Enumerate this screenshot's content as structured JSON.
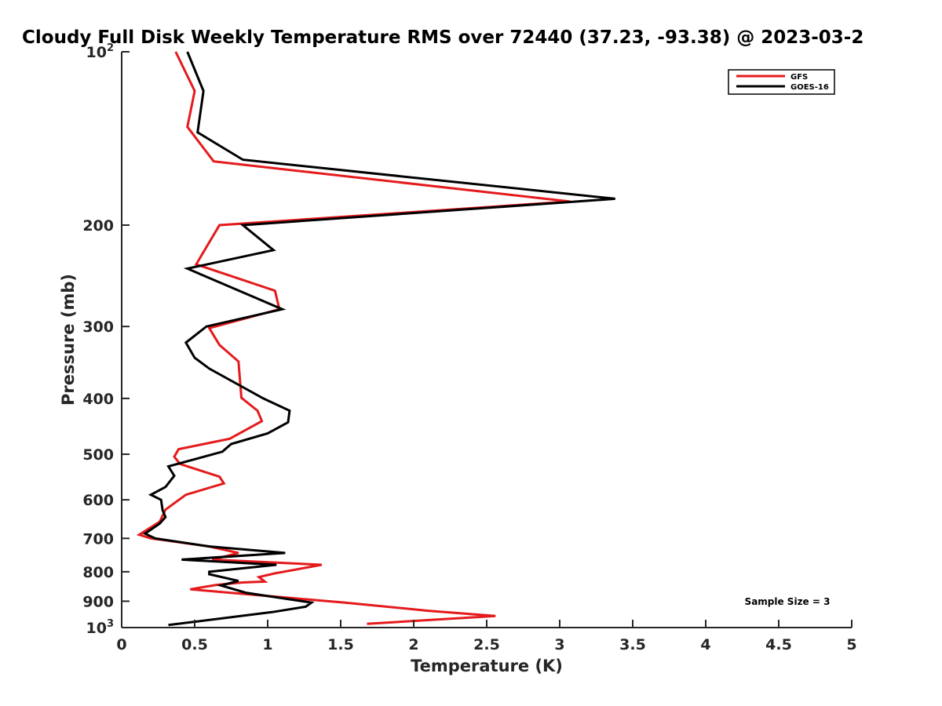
{
  "chart_data": {
    "type": "line",
    "title": "Cloudy Full Disk Weekly Temperature RMS over 72440 (37.23, -93.38) @ 2023-03-2",
    "xlabel": "Temperature (K)",
    "ylabel": "Pressure (mb)",
    "xlim": [
      0,
      5
    ],
    "ylim": [
      100,
      1000
    ],
    "y_scale": "log",
    "y_reversed": true,
    "grid": false,
    "legend_position": "top-right",
    "x_ticks": [
      {
        "value": 0,
        "label": "0"
      },
      {
        "value": 0.5,
        "label": "0.5"
      },
      {
        "value": 1,
        "label": "1"
      },
      {
        "value": 1.5,
        "label": "1.5"
      },
      {
        "value": 2,
        "label": "2"
      },
      {
        "value": 2.5,
        "label": "2.5"
      },
      {
        "value": 3,
        "label": "3"
      },
      {
        "value": 3.5,
        "label": "3.5"
      },
      {
        "value": 4,
        "label": "4"
      },
      {
        "value": 4.5,
        "label": "4.5"
      },
      {
        "value": 5,
        "label": "5"
      }
    ],
    "y_ticks": [
      {
        "value": 100,
        "label": "10",
        "exponent": "2"
      },
      {
        "value": 200,
        "label": "200",
        "exponent": ""
      },
      {
        "value": 300,
        "label": "300",
        "exponent": ""
      },
      {
        "value": 400,
        "label": "400",
        "exponent": ""
      },
      {
        "value": 500,
        "label": "500",
        "exponent": ""
      },
      {
        "value": 600,
        "label": "600",
        "exponent": ""
      },
      {
        "value": 700,
        "label": "700",
        "exponent": ""
      },
      {
        "value": 800,
        "label": "800",
        "exponent": ""
      },
      {
        "value": 900,
        "label": "900",
        "exponent": ""
      },
      {
        "value": 1000,
        "label": "10",
        "exponent": "3"
      }
    ],
    "annotation": "Sample Size = 3",
    "series": [
      {
        "name": "GFS",
        "color": "#e41a1c",
        "points": [
          [
            0.37,
            100
          ],
          [
            0.5,
            117
          ],
          [
            0.45,
            135
          ],
          [
            0.63,
            155
          ],
          [
            3.07,
            182
          ],
          [
            0.67,
            200
          ],
          [
            0.51,
            234
          ],
          [
            1.05,
            260
          ],
          [
            1.08,
            280
          ],
          [
            0.6,
            302
          ],
          [
            0.67,
            323
          ],
          [
            0.8,
            345
          ],
          [
            0.82,
            399
          ],
          [
            0.93,
            420
          ],
          [
            0.96,
            438
          ],
          [
            0.74,
            470
          ],
          [
            0.39,
            490
          ],
          [
            0.36,
            505
          ],
          [
            0.4,
            520
          ],
          [
            0.67,
            547
          ],
          [
            0.7,
            562
          ],
          [
            0.44,
            588
          ],
          [
            0.3,
            624
          ],
          [
            0.26,
            655
          ],
          [
            0.12,
            690
          ],
          [
            0.2,
            700
          ],
          [
            0.6,
            723
          ],
          [
            0.8,
            742
          ],
          [
            0.62,
            762
          ],
          [
            1.37,
            778
          ],
          [
            1.05,
            805
          ],
          [
            0.94,
            817
          ],
          [
            0.98,
            832
          ],
          [
            0.83,
            835
          ],
          [
            0.65,
            843
          ],
          [
            0.47,
            858
          ],
          [
            0.85,
            875
          ],
          [
            1.53,
            905
          ],
          [
            2.1,
            935
          ],
          [
            2.56,
            955
          ],
          [
            1.68,
            985
          ]
        ]
      },
      {
        "name": "GOES-16",
        "color": "#000000",
        "points": [
          [
            0.45,
            100
          ],
          [
            0.56,
            117
          ],
          [
            0.52,
            138
          ],
          [
            0.83,
            154
          ],
          [
            3.38,
            180
          ],
          [
            0.83,
            200
          ],
          [
            1.04,
            221
          ],
          [
            0.45,
            238
          ],
          [
            1.1,
            280
          ],
          [
            0.58,
            300
          ],
          [
            0.44,
            320
          ],
          [
            0.5,
            340
          ],
          [
            0.6,
            355
          ],
          [
            0.97,
            400
          ],
          [
            1.15,
            420
          ],
          [
            1.14,
            440
          ],
          [
            1.0,
            460
          ],
          [
            0.75,
            480
          ],
          [
            0.69,
            495
          ],
          [
            0.32,
            525
          ],
          [
            0.36,
            545
          ],
          [
            0.3,
            570
          ],
          [
            0.2,
            588
          ],
          [
            0.27,
            600
          ],
          [
            0.28,
            625
          ],
          [
            0.3,
            643
          ],
          [
            0.26,
            660
          ],
          [
            0.16,
            687
          ],
          [
            0.23,
            700
          ],
          [
            0.6,
            723
          ],
          [
            1.12,
            742
          ],
          [
            0.41,
            762
          ],
          [
            1.06,
            778
          ],
          [
            0.6,
            800
          ],
          [
            0.6,
            808
          ],
          [
            0.8,
            830
          ],
          [
            0.68,
            845
          ],
          [
            0.85,
            870
          ],
          [
            1.3,
            905
          ],
          [
            1.26,
            920
          ],
          [
            1.03,
            940
          ],
          [
            0.32,
            990
          ]
        ]
      }
    ]
  }
}
